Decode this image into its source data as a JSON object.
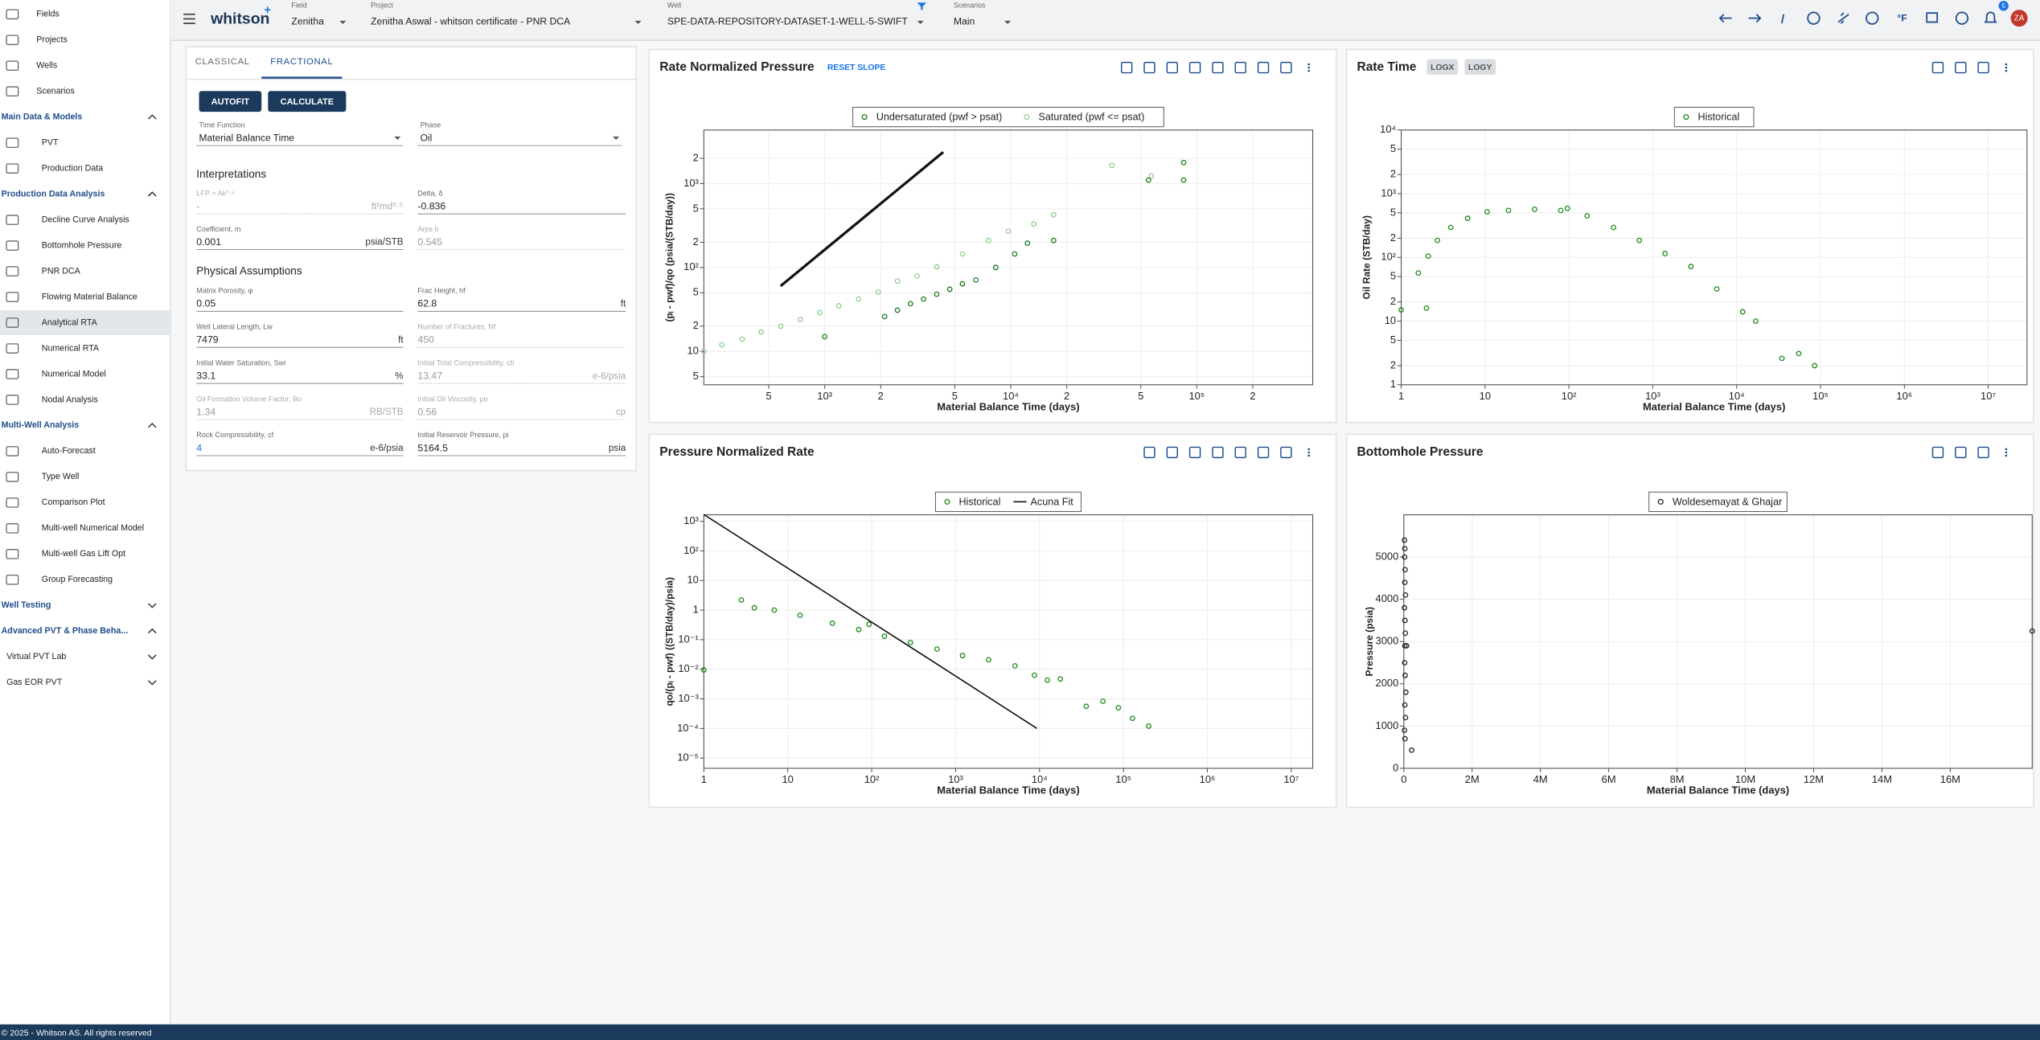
{
  "topbar": {
    "logo": "whitson",
    "logo_mark": "+",
    "field_label": "Field",
    "field": "Zenitha",
    "project_label": "Project",
    "project": "Zenitha Aswal - whitson certificate - PNR DCA",
    "well_label": "Well",
    "well": "SPE-DATA-REPOSITORY-DATASET-1-WELL-5-SWIFT",
    "scenarios_label": "Scenarios",
    "scenario": "Main",
    "temperature_unit": "°F",
    "notifications": "5",
    "avatar": "ZA"
  },
  "sidebar": {
    "items": [
      {
        "label": "Fields",
        "kind": "item"
      },
      {
        "label": "Projects",
        "kind": "item"
      },
      {
        "label": "Wells",
        "kind": "item"
      },
      {
        "label": "Scenarios",
        "kind": "item"
      },
      {
        "label": "Main Data & Models",
        "kind": "section",
        "expanded": true
      },
      {
        "label": "PVT",
        "kind": "item"
      },
      {
        "label": "Production Data",
        "kind": "item"
      },
      {
        "label": "Production Data Analysis",
        "kind": "section",
        "expanded": true
      },
      {
        "label": "Decline Curve Analysis",
        "kind": "item"
      },
      {
        "label": "Bottomhole Pressure",
        "kind": "item"
      },
      {
        "label": "PNR DCA",
        "kind": "item"
      },
      {
        "label": "Flowing Material Balance",
        "kind": "item"
      },
      {
        "label": "Analytical RTA",
        "kind": "item",
        "active": true
      },
      {
        "label": "Numerical RTA",
        "kind": "item"
      },
      {
        "label": "Numerical Model",
        "kind": "item"
      },
      {
        "label": "Nodal Analysis",
        "kind": "item"
      },
      {
        "label": "Multi-Well Analysis",
        "kind": "section",
        "expanded": true
      },
      {
        "label": "Auto-Forecast",
        "kind": "item"
      },
      {
        "label": "Type Well",
        "kind": "item"
      },
      {
        "label": "Comparison Plot",
        "kind": "item"
      },
      {
        "label": "Multi-well Numerical Model",
        "kind": "item"
      },
      {
        "label": "Multi-well Gas Lift Opt",
        "kind": "item"
      },
      {
        "label": "Group Forecasting",
        "kind": "item"
      },
      {
        "label": "Well Testing",
        "kind": "section",
        "expanded": false
      },
      {
        "label": "Advanced PVT & Phase Beha...",
        "kind": "section",
        "expanded": true
      },
      {
        "label": "Virtual PVT Lab",
        "kind": "group",
        "expanded": false
      },
      {
        "label": "Gas EOR PVT",
        "kind": "group",
        "expanded": false
      }
    ]
  },
  "form": {
    "tabs": [
      "CLASSICAL",
      "FRACTIONAL"
    ],
    "active_tab": 1,
    "buttons": [
      "AUTOFIT",
      "CALCULATE"
    ],
    "selects": [
      {
        "label": "Time Function",
        "value": "Material Balance Time"
      },
      {
        "label": "Phase",
        "value": "Oil"
      }
    ],
    "interpretations": {
      "title": "Interpretations",
      "fields": [
        {
          "label": "LFP = Ak⁰·⁵",
          "value": "-",
          "unit": "ft²md⁰·⁵",
          "disabled": true
        },
        {
          "label": "Delta, δ",
          "value": "-0.836"
        },
        {
          "label": "Coefficient, m",
          "value": "0.001",
          "unit": "psia/STB"
        },
        {
          "label": "Arps b",
          "value": "0.545",
          "disabled": true
        }
      ]
    },
    "physical": {
      "title": "Physical Assumptions",
      "fields": [
        {
          "label": "Matrix Porosity, φ",
          "value": "0.05"
        },
        {
          "label": "Frac Height, hf",
          "value": "62.8",
          "unit": "ft"
        },
        {
          "label": "Well Lateral Length, Lw",
          "value": "7479",
          "unit": "ft"
        },
        {
          "label": "Number of Fractures, Nf",
          "value": "450",
          "disabled": true
        },
        {
          "label": "Initial Water Saturation, Swi",
          "value": "33.1",
          "unit": "%"
        },
        {
          "label": "Initial Total Compressibility, cti",
          "value": "13.47",
          "unit": "e-6/psia",
          "disabled": true
        },
        {
          "label": "Oil Formation Volume Factor, Bo",
          "value": "1.34",
          "unit": "RB/STB",
          "disabled": true
        },
        {
          "label": "Initial Oil Viscosity, μo",
          "value": "0.56",
          "unit": "cp",
          "disabled": true
        },
        {
          "label": "Rock Compressibility, cf",
          "value": "4",
          "unit": "e-6/psia",
          "modified": true
        },
        {
          "label": "Initial Reservoir Pressure, pi",
          "value": "5164.5",
          "unit": "psia"
        }
      ]
    }
  },
  "chart_data": [
    {
      "type": "scatter",
      "title": "Rate Normalized Pressure",
      "header_buttons": [
        "RESET SLOPE"
      ],
      "x_label": "Material Balance Time (days)",
      "y_label": "(pᵢ - pwf)/qo (psia/(STB/day))",
      "xscale": "log",
      "yscale": "log",
      "grid": true,
      "xlim": [
        224,
        420000
      ],
      "ylim": [
        4,
        4350
      ],
      "xticks": [
        {
          "value": 500,
          "label": "5"
        },
        {
          "value": 1000,
          "label": "10³"
        },
        {
          "value": 2000,
          "label": "2"
        },
        {
          "value": 5000,
          "label": "5"
        },
        {
          "value": 10000,
          "label": "10⁴"
        },
        {
          "value": 20000,
          "label": "2"
        },
        {
          "value": 50000,
          "label": "5"
        },
        {
          "value": 100000,
          "label": "10⁵"
        },
        {
          "value": 200000,
          "label": "2"
        }
      ],
      "yticks": [
        5,
        10,
        {
          "value": 20,
          "label": "2"
        },
        {
          "value": 50,
          "label": "5"
        },
        {
          "value": 100,
          "label": "10²"
        },
        {
          "value": 200,
          "label": "2"
        },
        {
          "value": 500,
          "label": "5"
        },
        {
          "value": 1000,
          "label": "10³"
        },
        {
          "value": 2000,
          "label": "2"
        }
      ],
      "series": [
        {
          "name": "Undersaturated (pwf > psat)",
          "color": "#1b7a1b",
          "mode": "markers",
          "x": [
            2100,
            2460,
            2890,
            3400,
            4000,
            4700,
            5500,
            6500,
            8300,
            10500,
            12300,
            17000,
            1000,
            55000,
            85000,
            85000
          ],
          "values": [
            26,
            31,
            37,
            42,
            48,
            55,
            64,
            71,
            100,
            145,
            195,
            210,
            15,
            1100,
            1100,
            1780
          ]
        },
        {
          "name": "Saturated (pwf <= psat)",
          "color": "#8fcf8f",
          "mode": "markers",
          "x": [
            224,
            280,
            360,
            455,
            580,
            740,
            940,
            1190,
            1520,
            1940,
            2460,
            3140,
            4000,
            5500,
            7600,
            9700,
            13300,
            17000,
            35000,
            57000
          ],
          "values": [
            10,
            12,
            14,
            17,
            20,
            24,
            29,
            35,
            42,
            51,
            69,
            79,
            102,
            145,
            210,
            270,
            330,
            425,
            1650,
            1230
          ]
        }
      ]
    },
    {
      "type": "scatter",
      "title": "Rate Time",
      "header_buttons": [
        "LOGX",
        "LOGY"
      ],
      "x_label": "Material Balance Time (days)",
      "y_label": "Oil Rate (STB/day)",
      "xscale": "log",
      "yscale": "log",
      "grid": true,
      "xlim": [
        1,
        29000000
      ],
      "ylim": [
        1,
        10000
      ],
      "xticks": [
        1,
        10,
        {
          "value": 100,
          "label": "10²"
        },
        {
          "value": 1000,
          "label": "10³"
        },
        {
          "value": 10000,
          "label": "10⁴"
        },
        {
          "value": 100000,
          "label": "10⁵"
        },
        {
          "value": 1000000,
          "label": "10⁶"
        },
        {
          "value": 10000000,
          "label": "10⁷"
        }
      ],
      "yticks": [
        1,
        2,
        5,
        10,
        {
          "value": 20,
          "label": "2"
        },
        {
          "value": 50,
          "label": "5"
        },
        {
          "value": 100,
          "label": "10²"
        },
        {
          "value": 200,
          "label": "2"
        },
        {
          "value": 500,
          "label": "5"
        },
        {
          "value": 1000,
          "label": "10³"
        },
        {
          "value": 2000,
          "label": "2"
        },
        {
          "value": 5000,
          "label": "5"
        },
        {
          "value": 10000,
          "label": "10⁴"
        }
      ],
      "series": [
        {
          "name": "Historical",
          "color": "#1b8a1b",
          "mode": "markers",
          "x": [
            1,
            2,
            1.6,
            2.1,
            2.7,
            3.9,
            6.2,
            10.6,
            19,
            39,
            80,
            96,
            165,
            340,
            690,
            1400,
            2850,
            5800,
            11800,
            16900,
            34700,
            55000,
            85000
          ],
          "values": [
            15,
            16,
            57,
            105,
            185,
            295,
            410,
            520,
            545,
            570,
            545,
            590,
            450,
            295,
            185,
            115,
            72,
            32,
            14,
            10,
            2.6,
            3.1,
            2
          ]
        }
      ]
    },
    {
      "type": "scatter",
      "title": "Pressure Normalized Rate",
      "x_label": "Material Balance Time (days)",
      "y_label": "qo/(pᵢ - pwf) ((STB/day)/psia)",
      "xscale": "log",
      "yscale": "log",
      "grid": true,
      "xlim": [
        1,
        18000000
      ],
      "ylim": [
        4.5e-06,
        1660
      ],
      "xticks": [
        1,
        10,
        {
          "value": 100,
          "label": "10²"
        },
        {
          "value": 1000,
          "label": "10³"
        },
        {
          "value": 10000,
          "label": "10⁴"
        },
        {
          "value": 100000,
          "label": "10⁵"
        },
        {
          "value": 1000000,
          "label": "10⁶"
        },
        {
          "value": 10000000,
          "label": "10⁷"
        }
      ],
      "yticks": [
        {
          "value": 1000,
          "label": "10³"
        },
        {
          "value": 100,
          "label": "10²"
        },
        10,
        1,
        {
          "value": 0.1,
          "label": "10⁻¹"
        },
        {
          "value": 0.01,
          "label": "10⁻²"
        },
        {
          "value": 0.001,
          "label": "10⁻³"
        },
        {
          "value": 0.0001,
          "label": "10⁻⁴"
        },
        {
          "value": 1e-05,
          "label": "10⁻⁵"
        }
      ],
      "series": [
        {
          "name": "Historical",
          "color": "#1b8a1b",
          "mode": "markers",
          "x": [
            1,
            2.8,
            4,
            6.9,
            14,
            34,
            70,
            93,
            142,
            290,
            600,
            1210,
            2470,
            5100,
            8700,
            12400,
            17700,
            36000,
            57000,
            87000,
            128000,
            200000
          ],
          "values": [
            0.0095,
            2.2,
            1.2,
            1,
            0.67,
            0.36,
            0.22,
            0.33,
            0.13,
            0.08,
            0.048,
            0.029,
            0.021,
            0.013,
            0.0063,
            0.0043,
            0.0047,
            0.00056,
            0.00083,
            0.0005,
            0.00022,
            0.00012
          ]
        },
        {
          "name": "Acuna Fit",
          "color": "#111111",
          "mode": "lines",
          "x": [
            1,
            10,
            100,
            1000,
            9300
          ],
          "values": [
            1700,
            26,
            0.39,
            0.0059,
            0.0001
          ]
        }
      ]
    },
    {
      "type": "scatter",
      "title": "Bottomhole Pressure",
      "x_label": "Material Balance Time (days)",
      "y_label": "Pressure (psia)",
      "xscale": "linear",
      "yscale": "linear",
      "grid": true,
      "xlim": [
        0,
        18400000
      ],
      "ylim": [
        0,
        6000
      ],
      "xticks": [
        0,
        {
          "value": 2000000,
          "label": "2M"
        },
        {
          "value": 4000000,
          "label": "4M"
        },
        {
          "value": 6000000,
          "label": "6M"
        },
        {
          "value": 8000000,
          "label": "8M"
        },
        {
          "value": 10000000,
          "label": "10M"
        },
        {
          "value": 12000000,
          "label": "12M"
        },
        {
          "value": 14000000,
          "label": "14M"
        },
        {
          "value": 16000000,
          "label": "16M"
        }
      ],
      "yticks": [
        0,
        1000,
        2000,
        3000,
        4000,
        5000
      ],
      "series": [
        {
          "name": "Woldesemayat & Ghajar",
          "color": "#222222",
          "mode": "markers",
          "x": [
            20000,
            30000,
            25000,
            40000,
            30000,
            50000,
            20000,
            35000,
            45000,
            30000,
            25000,
            40000,
            60000,
            30000,
            50000,
            20000,
            35000,
            80000,
            230000,
            18400000
          ],
          "values": [
            5400,
            5200,
            5000,
            4700,
            4400,
            4100,
            3800,
            3500,
            3200,
            2900,
            2500,
            2200,
            1800,
            1500,
            1200,
            900,
            700,
            2900,
            430,
            3250
          ]
        }
      ]
    }
  ],
  "footer": "© 2025 - Whitson AS. All rights reserved"
}
